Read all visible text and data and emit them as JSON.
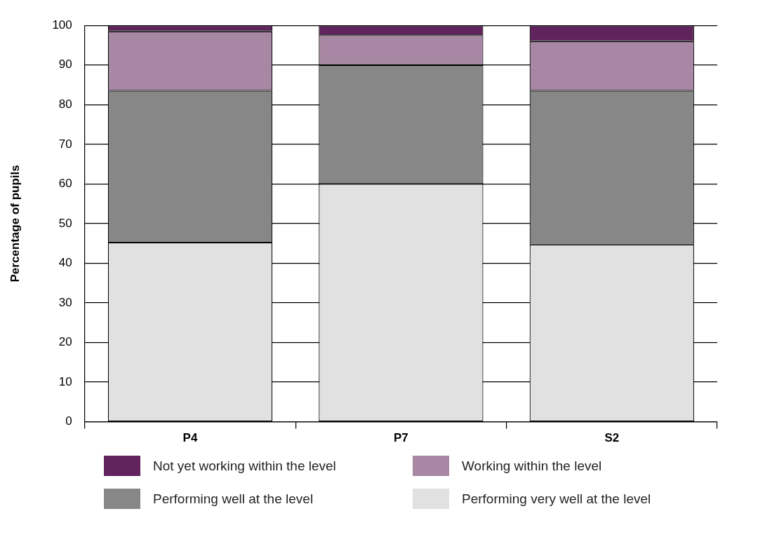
{
  "chart_data": {
    "type": "bar",
    "stacked": true,
    "ylabel": "Percentage of pupils",
    "categories": [
      "P4",
      "P7",
      "S2"
    ],
    "series": [
      {
        "name": "Performing very well at the level",
        "color": "#e1e1e1",
        "values": [
          45.2,
          60,
          44.7
        ]
      },
      {
        "name": "Performing well at the level",
        "color": "#878787",
        "values": [
          38.3,
          30,
          38.8
        ]
      },
      {
        "name": "Working within the level",
        "color": "#a787a3",
        "values": [
          15,
          7.5,
          12.5
        ]
      },
      {
        "name": "Not yet working within the level",
        "color": "#60235b",
        "values": [
          1.5,
          2.5,
          4
        ]
      }
    ],
    "ylim": [
      0,
      100
    ],
    "yticks": [
      0,
      10,
      20,
      30,
      40,
      50,
      60,
      70,
      80,
      90,
      100
    ],
    "grid": "y",
    "legend": "bottom"
  }
}
